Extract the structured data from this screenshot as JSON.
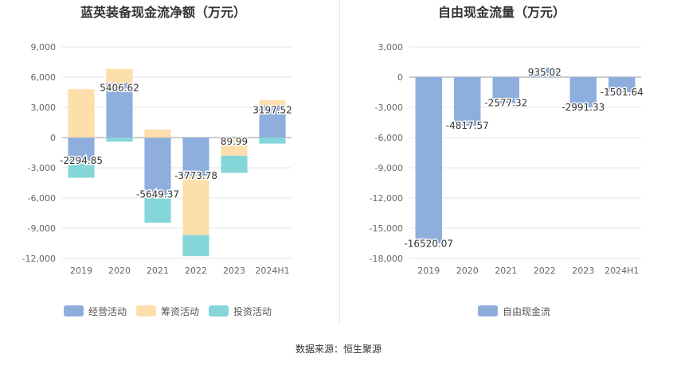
{
  "source_label": "数据来源：恒生聚源",
  "colors": {
    "operating": "#8eaedd",
    "financing": "#fddfab",
    "investing": "#85d6d9",
    "fcf": "#8eaedd",
    "grid": "#e6e6e6",
    "axis_text": "#666666",
    "label_text": "#333333"
  },
  "chart_data": [
    {
      "type": "bar",
      "stacked": true,
      "title": "蓝英装备现金流净额（万元）",
      "categories": [
        "2019",
        "2020",
        "2021",
        "2022",
        "2023",
        "2024H1"
      ],
      "ylim": [
        -12000,
        9000
      ],
      "yticks": [
        9000,
        6000,
        3000,
        0,
        -3000,
        -6000,
        -9000,
        -12000
      ],
      "ytick_labels": [
        "9,000",
        "6,000",
        "3,000",
        "0",
        "-3,000",
        "-6,000",
        "-9,000",
        "-12,000"
      ],
      "grid": true,
      "legend_position": "bottom",
      "series": [
        {
          "name": "经营活动",
          "color": "#8eaedd",
          "values": [
            -2294.85,
            5406.62,
            -5649.37,
            -3773.78,
            89.99,
            3197.52
          ]
        },
        {
          "name": "筹资活动",
          "color": "#fddfab",
          "values": [
            4800,
            1400,
            800,
            -5900,
            -1800,
            500
          ]
        },
        {
          "name": "投资活动",
          "color": "#85d6d9",
          "values": [
            -1700,
            -400,
            -2800,
            -2100,
            -1700,
            -600
          ]
        }
      ],
      "data_labels": [
        "-2294.85",
        "5406.62",
        "-5649.37",
        "-3773.78",
        "89.99",
        "3197.52"
      ],
      "data_label_series": 0
    },
    {
      "type": "bar",
      "stacked": false,
      "title": "自由现金流量（万元）",
      "categories": [
        "2019",
        "2020",
        "2021",
        "2022",
        "2023",
        "2024H1"
      ],
      "ylim": [
        -18000,
        3000
      ],
      "yticks": [
        3000,
        0,
        -3000,
        -6000,
        -9000,
        -12000,
        -15000,
        -18000
      ],
      "ytick_labels": [
        "3,000",
        "0",
        "-3,000",
        "-6,000",
        "-9,000",
        "-12,000",
        "-15,000",
        "-18,000"
      ],
      "grid": true,
      "legend_position": "bottom",
      "series": [
        {
          "name": "自由现金流",
          "color": "#8eaedd",
          "values": [
            -16520.07,
            -4817.57,
            -2577.32,
            935.02,
            -2991.33,
            -1501.64
          ]
        }
      ],
      "data_labels": [
        "-16520.07",
        "-4817.57",
        "-2577.32",
        "935.02",
        "-2991.33",
        "-1501.64"
      ],
      "data_label_series": 0
    }
  ]
}
